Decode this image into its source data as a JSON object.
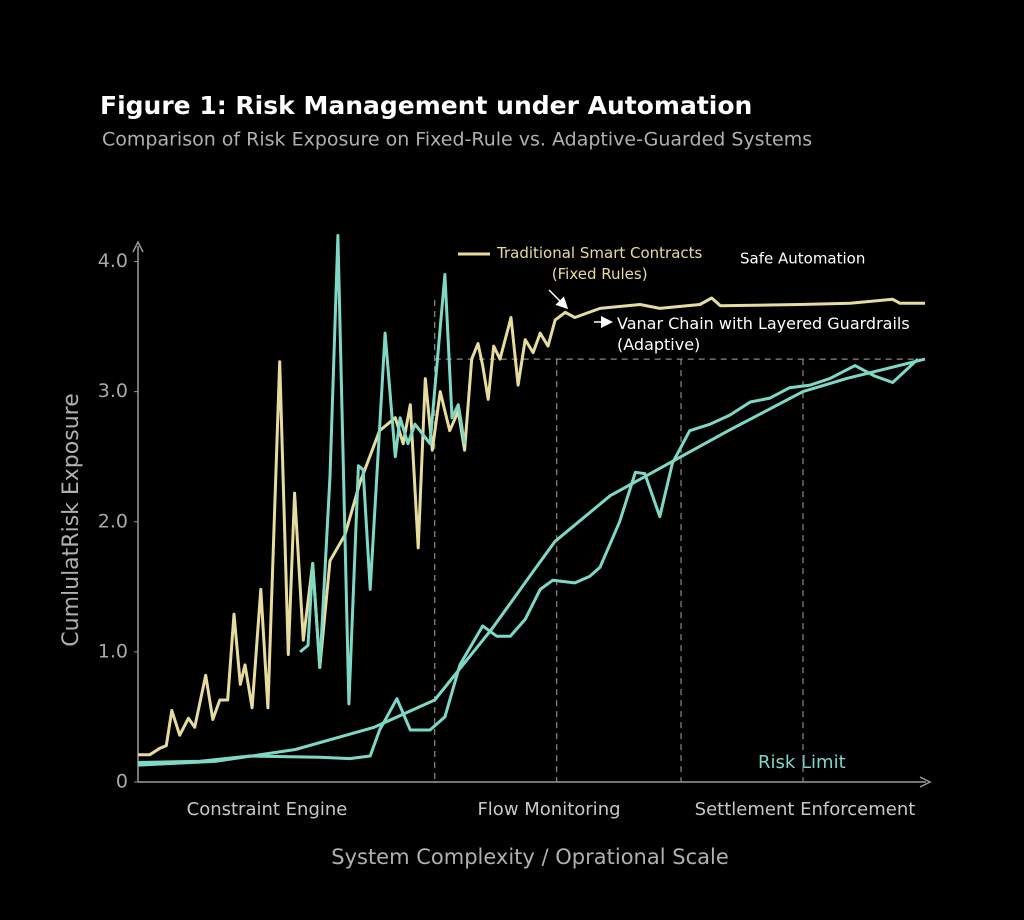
{
  "chart_data": {
    "type": "line",
    "title": "Figure 1: Risk Management under Automation",
    "subtitle": "Comparison of Risk Exposure on Fixed-Rule vs. Adaptive-Guarded Systems",
    "y_label": "CumlulatRisk Exposure",
    "x_label": "System Complexity / Oprational Scale",
    "regions": [
      "Constraint Engine",
      "Flow Monitoring",
      "Settlement Enforcement"
    ],
    "annotations": [
      "Safe Automation",
      "Risk Limit"
    ],
    "xlim": [
      0,
      100
    ],
    "ylim": [
      0,
      4.15
    ],
    "yticks": [
      0,
      {
        "value": 1,
        "label": "1.0"
      },
      {
        "value": 2,
        "label": "2.0"
      },
      {
        "value": 3,
        "label": "3.0"
      },
      {
        "value": 4,
        "label": "4.0"
      }
    ],
    "grid": false,
    "reference_lines": {
      "x": [
        37.7,
        53.2,
        69,
        84.5
      ],
      "y": 3.25
    },
    "series": [
      {
        "name": "Traditional Smart Contracts\n(Fixed Rules)",
        "color": "#e6dc9e",
        "x": [
          0,
          1.5,
          2.8,
          3.6,
          4.3,
          5.3,
          6.4,
          7.2,
          8.6,
          9.5,
          10.4,
          11.4,
          12.2,
          13.0,
          13.6,
          14.5,
          15.6,
          16.5,
          18.0,
          19.1,
          19.9,
          21.0,
          22.2,
          23.1,
          24.4,
          26.3,
          28.2,
          30.7,
          32.7,
          33.7,
          34.6,
          35.6,
          36.5,
          37.4,
          38.4,
          39.6,
          40.7,
          41.5,
          42.4,
          43.2,
          43.8,
          44.5,
          45.2,
          46.0,
          47.4,
          48.3,
          49.2,
          50.2,
          51.1,
          52.1,
          53.0,
          54.3,
          55.5,
          58.7,
          63.8,
          66.3,
          71.4,
          72.9,
          74.0,
          84.1,
          90.5,
          95.9,
          96.8,
          100
        ],
        "values": [
          0.21,
          0.21,
          0.26,
          0.28,
          0.55,
          0.36,
          0.49,
          0.42,
          0.82,
          0.48,
          0.63,
          0.63,
          1.29,
          0.75,
          0.9,
          0.57,
          1.48,
          0.57,
          3.23,
          0.98,
          2.22,
          1.09,
          1.68,
          0.88,
          1.7,
          1.9,
          2.3,
          2.7,
          2.8,
          2.6,
          2.9,
          1.8,
          3.1,
          2.55,
          3.0,
          2.7,
          2.85,
          2.55,
          3.25,
          3.37,
          3.2,
          2.94,
          3.35,
          3.25,
          3.57,
          3.05,
          3.4,
          3.3,
          3.45,
          3.35,
          3.55,
          3.61,
          3.57,
          3.64,
          3.67,
          3.64,
          3.67,
          3.72,
          3.66,
          3.67,
          3.68,
          3.71,
          3.68,
          3.68
        ]
      },
      {
        "name": "Vanar Chain with Layered Guardrails\n(Adaptive)",
        "color": "#7fd8c6",
        "x": [
          0,
          7.9,
          14.2,
          23.1,
          26.9,
          29.5,
          30.7,
          32.9,
          34.6,
          37.1,
          39.0,
          40.9,
          43.8,
          45.6,
          47.3,
          49.2,
          51.1,
          52.7,
          55.5,
          57.4,
          58.7,
          61.2,
          63.2,
          64.4,
          66.3,
          67.9,
          70.1,
          72.7,
          75.2,
          77.8,
          80.3,
          82.8,
          85.4,
          87.9,
          91.1,
          93.6,
          95.9,
          99.1
        ],
        "values": [
          0.15,
          0.16,
          0.2,
          0.19,
          0.18,
          0.2,
          0.4,
          0.64,
          0.4,
          0.4,
          0.5,
          0.9,
          1.2,
          1.12,
          1.12,
          1.25,
          1.48,
          1.55,
          1.53,
          1.58,
          1.65,
          2.0,
          2.38,
          2.37,
          2.04,
          2.45,
          2.7,
          2.75,
          2.82,
          2.92,
          2.95,
          3.03,
          3.05,
          3.1,
          3.2,
          3.12,
          3.07,
          3.25
        ]
      },
      {
        "color": "#7fd8c6",
        "x": [
          20.6,
          21.6,
          22.2,
          23.1,
          24.4,
          25.4,
          26.8,
          28.0,
          28.6,
          29.5,
          30.4,
          31.4,
          32.7,
          33.3,
          34.3,
          35.2,
          37.1,
          39.0,
          39.9,
          40.7,
          41.5
        ],
        "values": [
          1.0,
          1.05,
          1.68,
          0.88,
          2.35,
          4.2,
          0.6,
          2.43,
          2.4,
          1.48,
          2.4,
          3.45,
          2.5,
          2.8,
          2.6,
          2.75,
          2.6,
          3.9,
          2.8,
          2.9,
          2.6
        ]
      },
      {
        "color": "#7fd8c6",
        "x": [
          0,
          10,
          20,
          30,
          37.7,
          45,
          50,
          53,
          60,
          69,
          75,
          84.5,
          90,
          100
        ],
        "values": [
          0.13,
          0.16,
          0.25,
          0.42,
          0.63,
          1.18,
          1.6,
          1.85,
          2.2,
          2.5,
          2.7,
          3.0,
          3.1,
          3.25
        ]
      }
    ]
  }
}
